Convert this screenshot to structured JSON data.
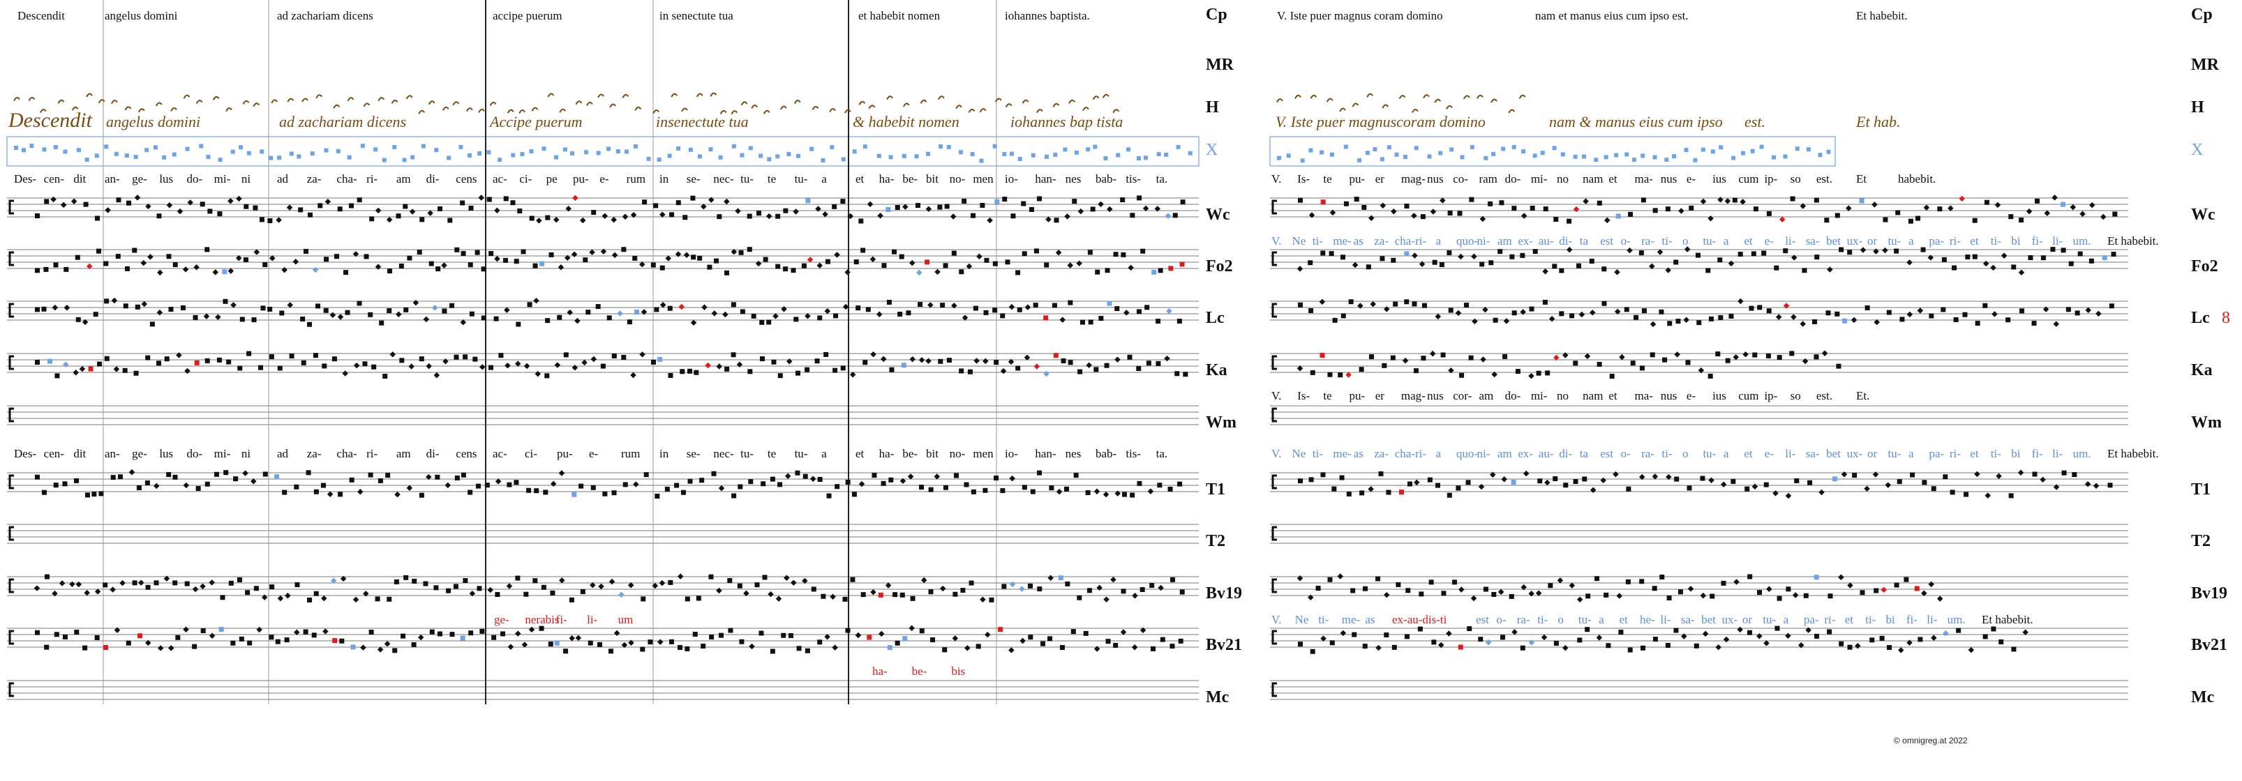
{
  "copyright": "© omnigreg.at 2022",
  "sources": [
    "Cp",
    "MR",
    "H",
    "X",
    "Wc",
    "Fo2",
    "Lc",
    "Ka",
    "Wm",
    "T1",
    "T2",
    "Bv19",
    "Bv21",
    "Mc"
  ],
  "lc_extra_number": "8",
  "left": {
    "cp_header": [
      "Descendit",
      "angelus domini",
      "ad zachariam dicens",
      "accipe puerum",
      "in senectute tua",
      "et habebit nomen",
      "iohannes baptista."
    ],
    "h_neume_text": [
      "Descendit",
      "angelus domini",
      "ad zachariam dicens",
      "Accipe puerum",
      "insenectute tua",
      "& habebit nomen",
      "iohannes bap tista"
    ],
    "lyrics_1": [
      "Des-",
      "cen-",
      "dit",
      "an-",
      "ge-",
      "lus",
      "do-",
      "mi-",
      "ni",
      "ad",
      "za-",
      "cha-",
      "ri-",
      "am",
      "di-",
      "cens",
      "ac-",
      "ci-",
      "pe",
      "pu-",
      "e-",
      "rum",
      "in",
      "se-",
      "nec-",
      "tu-",
      "te",
      "tu-",
      "a",
      "et",
      "ha-",
      "be-",
      "bit",
      "no-",
      "men",
      "io-",
      "han-",
      "nes",
      "bab-",
      "tis-",
      "ta."
    ],
    "lyrics_2": [
      "Des-",
      "cen-",
      "dit",
      "an-",
      "ge-",
      "lus",
      "do-",
      "mi-",
      "ni",
      "ad",
      "za-",
      "cha-",
      "ri-",
      "am",
      "di-",
      "cens",
      "ac-",
      "ci-",
      "pu-",
      "e-",
      "rum",
      "in",
      "se-",
      "nec-",
      "tu-",
      "te",
      "tu-",
      "a",
      "et",
      "ha-",
      "be-",
      "bit",
      "no-",
      "men",
      "io-",
      "han-",
      "nes",
      "bab-",
      "tis-",
      "ta."
    ],
    "bv19_red": [
      "ge-",
      "nerabis",
      "fi-",
      "li-",
      "um"
    ],
    "bv21_red": [
      "ha-",
      "be-",
      "bis"
    ]
  },
  "right": {
    "cp_header": [
      "V. Iste puer magnus coram domino",
      "nam et manus eius cum ipso est.",
      "Et habebit."
    ],
    "h_neume_text": [
      "V. Iste puer magnuscoram domino",
      "nam & manus eius cum ipso",
      "est.",
      "Et hab."
    ],
    "lyrics_1": [
      "V.",
      "Is-",
      "te",
      "pu-",
      "er",
      "mag-",
      "nus",
      "co-",
      "ram",
      "do-",
      "mi-",
      "no",
      "nam",
      "et",
      "ma-",
      "nus",
      "e-",
      "ius",
      "cum",
      "ip-",
      "so",
      "est.",
      "Et",
      "habebit."
    ],
    "wc_blue": [
      "V.",
      "Ne",
      "ti-",
      "me-",
      "as",
      "za-",
      "cha-",
      "ri-",
      "a",
      "quo-",
      "ni-",
      "am",
      "ex-",
      "au-",
      "di-",
      "ta",
      "est",
      "o-",
      "ra-",
      "ti-",
      "o",
      "tu-",
      "a",
      "et",
      "e-",
      "li-",
      "sa-",
      "bet",
      "ux-",
      "or",
      "tu-",
      "a",
      "pa-",
      "ri-",
      "et",
      "ti-",
      "bi",
      "fi-",
      "li-",
      "um."
    ],
    "wc_end": "Et habebit.",
    "ka_lyrics": [
      "V.",
      "Is-",
      "te",
      "pu-",
      "er",
      "mag-",
      "nus",
      "cor-",
      "am",
      "do-",
      "mi-",
      "no",
      "nam",
      "et",
      "ma-",
      "nus",
      "e-",
      "ius",
      "cum",
      "ip-",
      "so",
      "est.",
      "Et."
    ],
    "wm_blue": [
      "V.",
      "Ne",
      "ti-",
      "me-",
      "as",
      "za-",
      "cha-",
      "ri-",
      "a",
      "quo-",
      "ni-",
      "am",
      "ex-",
      "au-",
      "di-",
      "ta",
      "est",
      "o-",
      "ra-",
      "ti-",
      "o",
      "tu-",
      "a",
      "et",
      "e-",
      "li-",
      "sa-",
      "bet",
      "ux-",
      "or",
      "tu-",
      "a",
      "pa-",
      "ri-",
      "et",
      "ti-",
      "bi",
      "fi-",
      "li-",
      "um."
    ],
    "wm_end": "Et habebit.",
    "bv19_blue_a": [
      "V.",
      "Ne",
      "ti-",
      "me-",
      "as"
    ],
    "bv19_red": "ex-au-dis-ti",
    "bv19_blue_b": [
      "est",
      "o-",
      "ra-",
      "ti-",
      "o",
      "tu-",
      "a",
      "et",
      "he-",
      "li-",
      "sa-",
      "bet",
      "ux-",
      "or",
      "tu-",
      "a",
      "pa-",
      "ri-",
      "et",
      "ti-",
      "bi",
      "fi-",
      "li-",
      "um."
    ],
    "bv19_end": "Et habebit."
  },
  "colors": {
    "blue": "#6fa3e8",
    "red": "#e01b1b",
    "neume_ink": "#7a4c12",
    "green": "#3a9a5a",
    "staff": "#555555"
  }
}
